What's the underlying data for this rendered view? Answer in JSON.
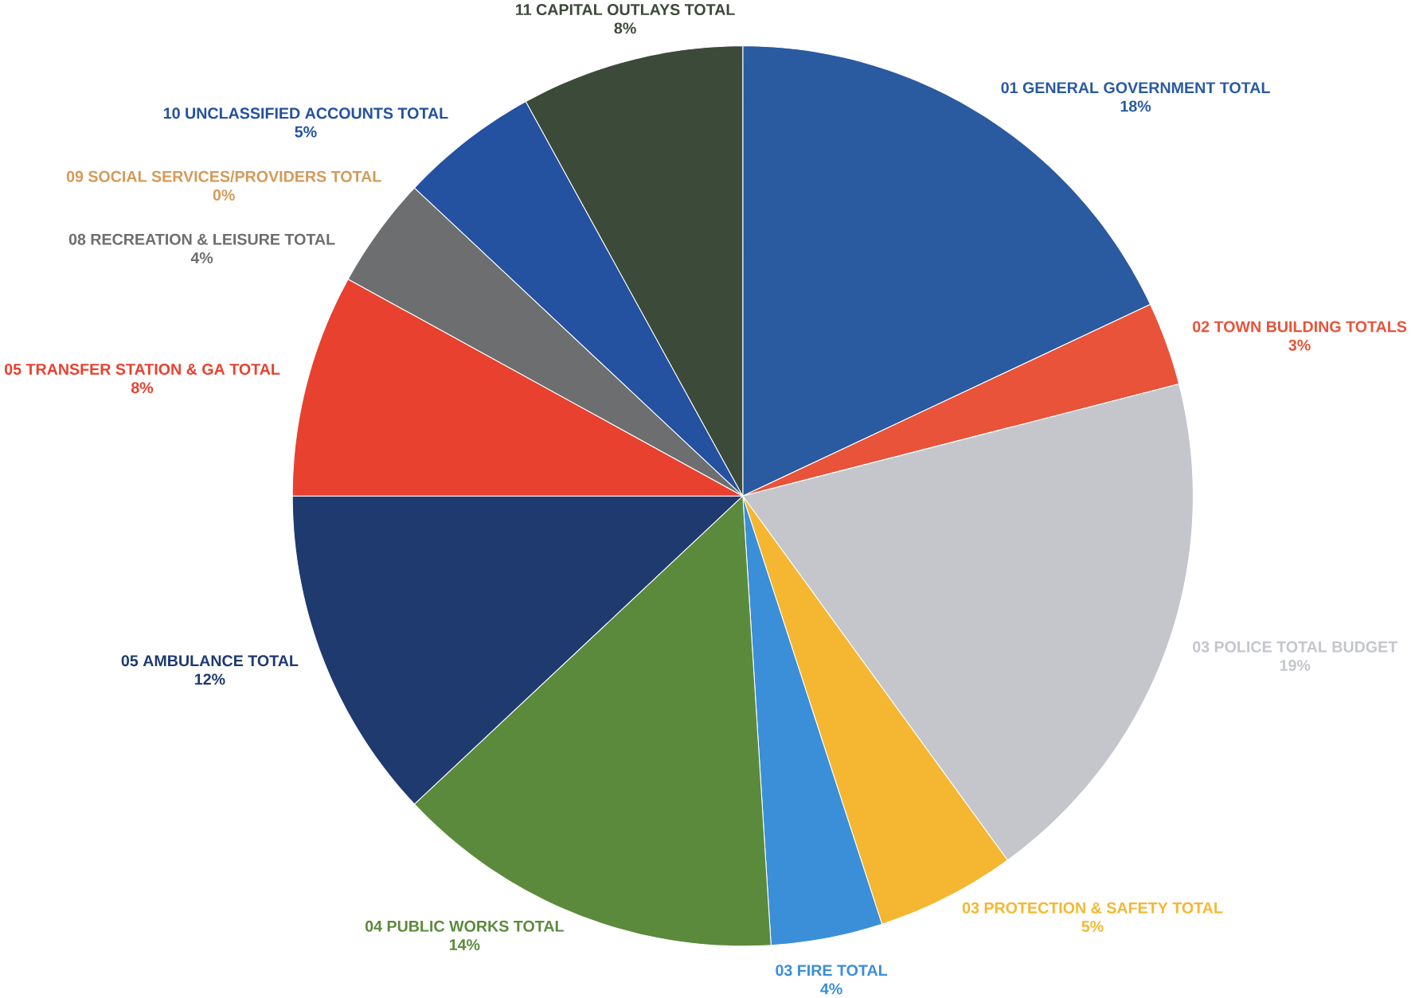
{
  "chart_data": {
    "type": "pie",
    "categories": [
      "01 GENERAL GOVERNMENT TOTAL",
      "02 TOWN BUILDING TOTALS",
      "03 POLICE TOTAL BUDGET",
      "03 PROTECTION & SAFETY TOTAL",
      "03 FIRE TOTAL",
      "04 PUBLIC WORKS TOTAL",
      "05 AMBULANCE TOTAL",
      "05 TRANSFER STATION & GA TOTAL",
      "08 RECREATION & LEISURE TOTAL",
      "09 SOCIAL SERVICES/PROVIDERS TOTAL",
      "10 UNCLASSIFIED ACCOUNTS TOTAL",
      "11 CAPITAL OUTLAYS TOTAL"
    ],
    "values": [
      18,
      3,
      19,
      5,
      4,
      14,
      12,
      8,
      4,
      0,
      5,
      8
    ],
    "value_labels": [
      "18%",
      "3%",
      "19%",
      "5%",
      "4%",
      "14%",
      "12%",
      "8%",
      "4%",
      "0%",
      "5%",
      "8%"
    ],
    "colors": [
      "#2a5aa0",
      "#e8533a",
      "#c4c6cc",
      "#f5b731",
      "#3a8fd8",
      "#5b8a3c",
      "#1f3a6e",
      "#e8412f",
      "#6d6e70",
      "#d49a5a",
      "#2451a0",
      "#3c4a3a"
    ]
  }
}
